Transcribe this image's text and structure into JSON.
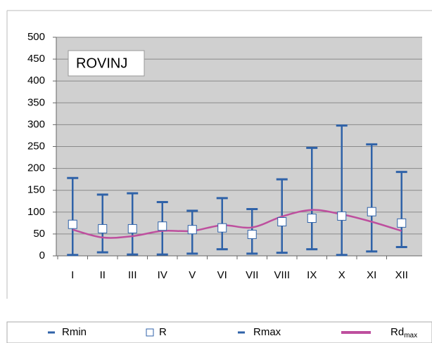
{
  "chart_data": {
    "type": "errorbar",
    "annotation": "ROVINJ",
    "categories": [
      "I",
      "II",
      "III",
      "IV",
      "V",
      "VI",
      "VII",
      "VIII",
      "IX",
      "X",
      "XI",
      "XII"
    ],
    "series": [
      {
        "name": "Rmin",
        "color": "#2f62a8",
        "values": [
          2,
          8,
          3,
          3,
          5,
          15,
          5,
          7,
          15,
          2,
          10,
          20
        ]
      },
      {
        "name": "R",
        "color": "#2f62a8",
        "values": [
          72,
          62,
          62,
          68,
          60,
          64,
          49,
          78,
          86,
          91,
          101,
          75
        ]
      },
      {
        "name": "Rmax",
        "color": "#2f62a8",
        "values": [
          178,
          140,
          143,
          123,
          103,
          132,
          107,
          175,
          247,
          298,
          255,
          192
        ]
      },
      {
        "name": "Rd",
        "name_sub": "max",
        "color": "#be4f9e",
        "values": [
          60,
          42,
          45,
          57,
          57,
          70,
          65,
          90,
          105,
          95,
          78,
          57
        ]
      }
    ],
    "ylim": [
      0,
      500
    ],
    "yticks": [
      0,
      50,
      100,
      150,
      200,
      250,
      300,
      350,
      400,
      450,
      500
    ],
    "grid": true
  }
}
